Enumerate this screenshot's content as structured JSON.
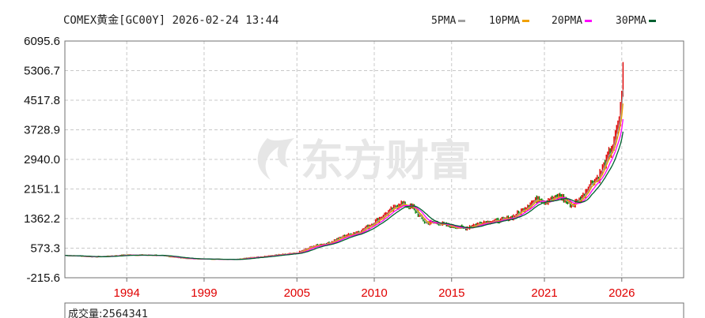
{
  "title": "COMEX黄金[GC00Y] 2026-02-24 13:44",
  "watermark": "东方财富",
  "volume_label": "成交量:2564341",
  "colors": {
    "up": "#e00000",
    "down": "#008000",
    "ma5": "#a0a0a0",
    "ma10": "#f0a000",
    "ma20": "#ff00ff",
    "ma30": "#006030",
    "grid": "#c8c8c8",
    "axis": "#707070",
    "xtick": "#e00000"
  },
  "chart_data": {
    "type": "line",
    "title": "COMEX黄金[GC00Y] 2026-02-24 13:44",
    "ylim": [
      -215.6,
      6095.6
    ],
    "y_ticks": [
      "6095.6",
      "5306.7",
      "4517.8",
      "3728.9",
      "2940.0",
      "2151.1",
      "1362.2",
      "573.3",
      "-215.6"
    ],
    "x_ticks": [
      "1994",
      "1999",
      "2005",
      "2010",
      "2015",
      "2021",
      "2026"
    ],
    "x_range": [
      1990,
      2030
    ],
    "grid": true,
    "legend_position": "top-right",
    "legend": [
      "5PMA",
      "10PMA",
      "20PMA",
      "30PMA"
    ],
    "x": [
      1990,
      1992,
      1994,
      1996,
      1998,
      1999.5,
      2001,
      2003,
      2005,
      2006,
      2007,
      2008,
      2009,
      2010,
      2011,
      2011.7,
      2012.5,
      2013.3,
      2014,
      2015,
      2015.9,
      2017,
      2018,
      2019,
      2020.6,
      2021,
      2022,
      2022.8,
      2023.5,
      2024,
      2024.5,
      2025,
      2025.5,
      2025.9,
      2026.1
    ],
    "values": [
      380,
      340,
      390,
      380,
      290,
      280,
      275,
      360,
      440,
      620,
      700,
      880,
      1000,
      1250,
      1550,
      1750,
      1650,
      1250,
      1250,
      1150,
      1100,
      1250,
      1300,
      1400,
      1900,
      1800,
      1950,
      1700,
      1950,
      2300,
      2450,
      2900,
      3350,
      4100,
      5450
    ]
  }
}
